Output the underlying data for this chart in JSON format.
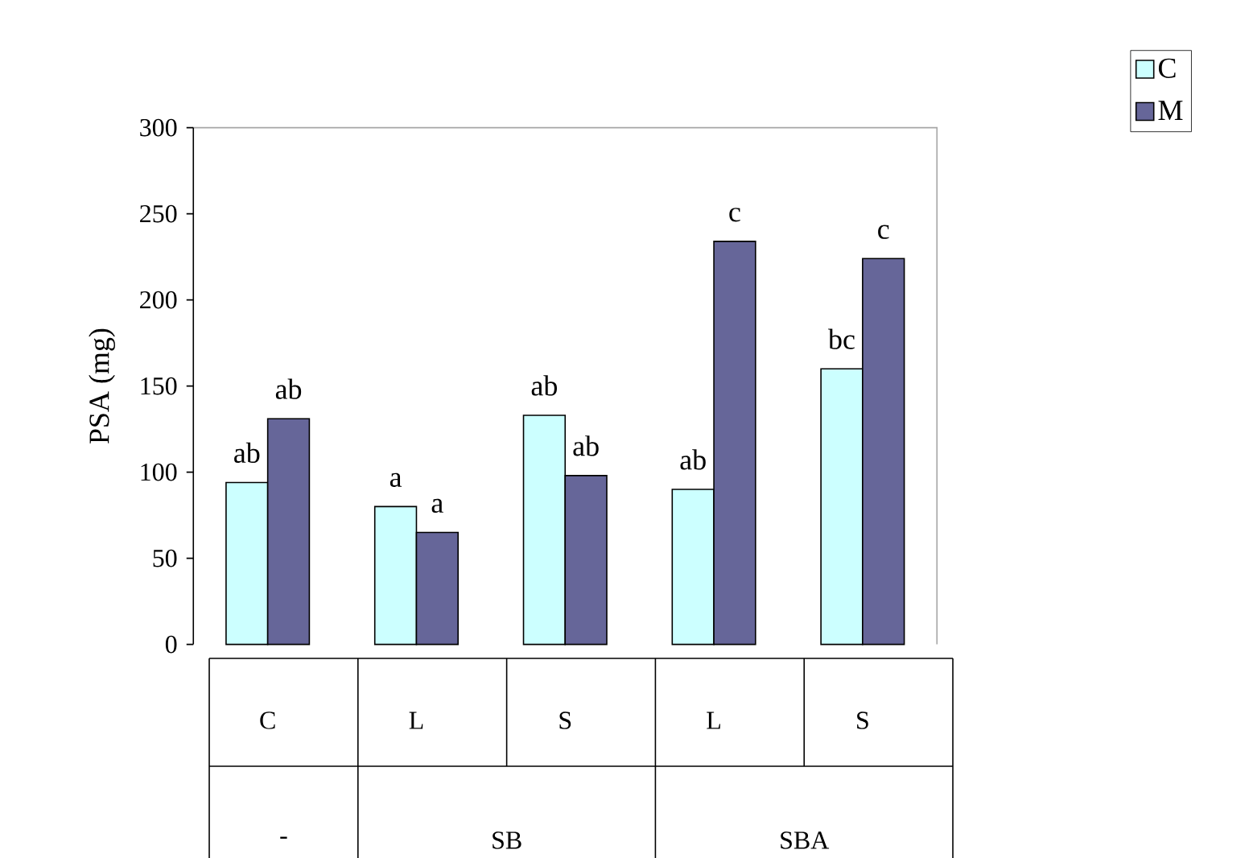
{
  "chart_data": {
    "type": "bar",
    "ylabel": "PSA (mg)",
    "categories": [
      "C",
      "L",
      "S",
      "L",
      "S"
    ],
    "annotations": [
      "-",
      "SB",
      "SBA"
    ],
    "series": [
      {
        "name": "C",
        "color": "#ccffff",
        "values": [
          94,
          80,
          133,
          90,
          160
        ],
        "value_labels": [
          "ab",
          "a",
          "ab",
          "ab",
          "bc"
        ]
      },
      {
        "name": "M",
        "color": "#666699",
        "values": [
          131,
          65,
          98,
          234,
          224
        ],
        "value_labels": [
          "ab",
          "a",
          "ab",
          "c",
          "c"
        ]
      }
    ],
    "ylim": [
      0,
      300
    ],
    "yticks": [
      0,
      50,
      100,
      150,
      200,
      250,
      300
    ],
    "legend": "top right"
  }
}
